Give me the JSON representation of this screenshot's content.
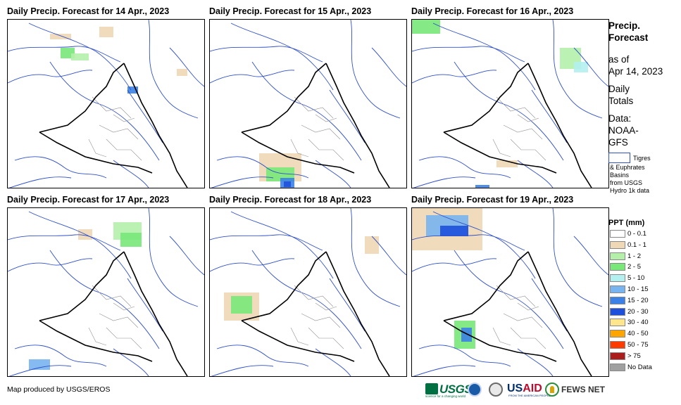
{
  "panels": [
    {
      "title": "Daily Precip. Forecast for 14 Apr., 2023"
    },
    {
      "title": "Daily Precip. Forecast for 15 Apr., 2023"
    },
    {
      "title": "Daily Precip. Forecast for 16 Apr., 2023"
    },
    {
      "title": "Daily Precip. Forecast for 17 Apr., 2023"
    },
    {
      "title": "Daily Precip. Forecast for 18 Apr., 2023"
    },
    {
      "title": "Daily Precip. Forecast for 19 Apr., 2023"
    }
  ],
  "sidebar": {
    "title_line1": "Precip.",
    "title_line2": "Forecast",
    "asof_line1": "as of",
    "asof_line2": "Apr 14, 2023",
    "totals_line1": "Daily",
    "totals_line2": "Totals",
    "data_line1": "Data:",
    "data_line2": "NOAA-",
    "data_line3": "GFS",
    "basin_line1": "Tigres",
    "basin_line2": "& Euphrates",
    "basin_line3": "Basins",
    "basin_line4": "from USGS",
    "basin_line5": "Hydro 1k data"
  },
  "legend": {
    "title": "PPT (mm)",
    "items": [
      {
        "label": "0 - 0.1",
        "color": "#ffffff"
      },
      {
        "label": "0.1 - 1",
        "color": "#eed8b6"
      },
      {
        "label": "1 - 2",
        "color": "#b4f0aa"
      },
      {
        "label": "2 - 5",
        "color": "#78e878"
      },
      {
        "label": "5 - 10",
        "color": "#b4f0f0"
      },
      {
        "label": "10 - 15",
        "color": "#78b4f0"
      },
      {
        "label": "15 - 20",
        "color": "#3c82e6"
      },
      {
        "label": "20 - 30",
        "color": "#1e50dc"
      },
      {
        "label": "30 - 40",
        "color": "#ffe68c"
      },
      {
        "label": "40 - 50",
        "color": "#ffa500"
      },
      {
        "label": "50 - 75",
        "color": "#ff3c00"
      },
      {
        "label": "> 75",
        "color": "#aa1e1e"
      },
      {
        "label": "No Data",
        "color": "#a0a0a0"
      }
    ]
  },
  "colors": {
    "river": "#3050c8",
    "country_border": "#000000",
    "province_border": "#909090"
  },
  "footer": {
    "credit": "Map produced by USGS/EROS",
    "logos": {
      "usgs": "USGS",
      "usgs_tag": "science for a changing world",
      "usaid_a": "US",
      "usaid_b": "AID",
      "usaid_tag": "FROM THE AMERICAN PEOPLE",
      "fews": "FEWS NET"
    }
  }
}
